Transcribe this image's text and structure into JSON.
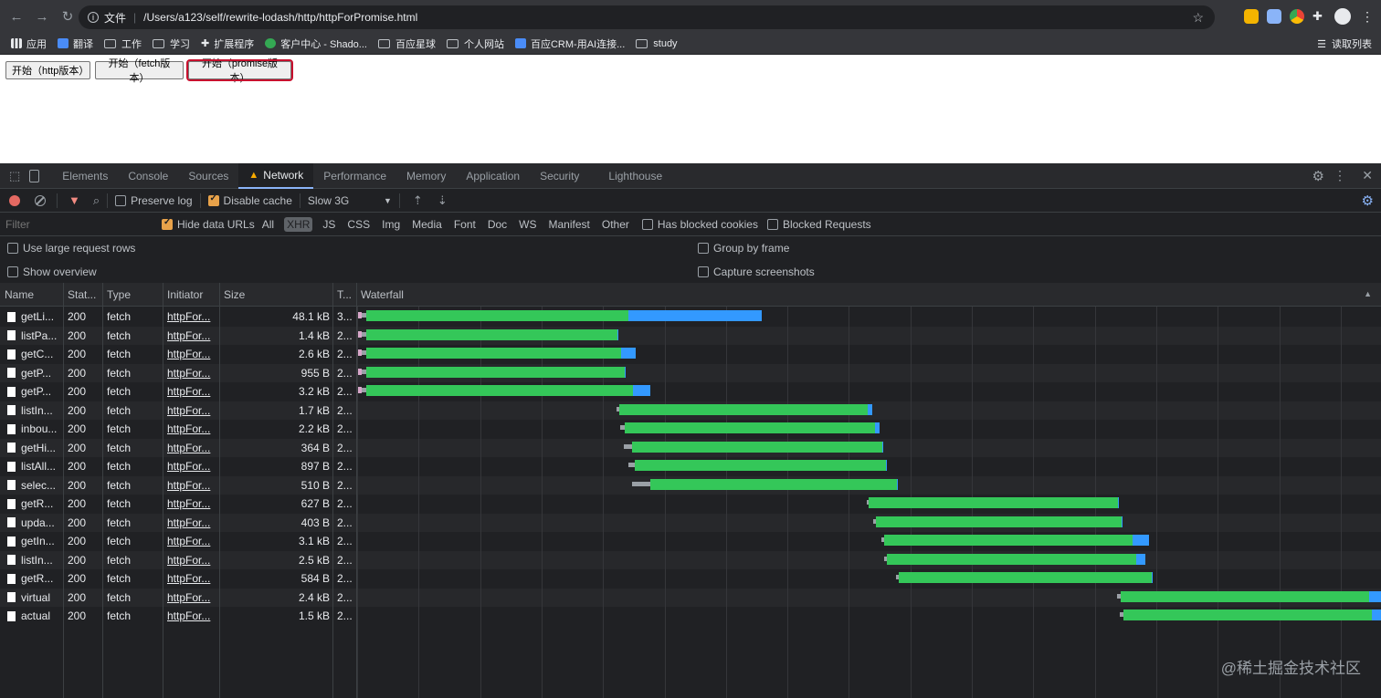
{
  "browser": {
    "url_scheme": "文件",
    "url_path": "/Users/a123/self/rewrite-lodash/http/httpForPromise.html",
    "bookmarks": [
      {
        "label": "应用",
        "color": "#e8eaed",
        "type": "apps"
      },
      {
        "label": "翻译",
        "color": "#4a8cf7",
        "type": "site"
      },
      {
        "label": "工作",
        "type": "folder"
      },
      {
        "label": "学习",
        "type": "folder"
      },
      {
        "label": "扩展程序",
        "color": "#e8eaed",
        "type": "puzzle"
      },
      {
        "label": "客户中心 - Shado...",
        "color": "#34a853",
        "type": "site"
      },
      {
        "label": "百应星球",
        "type": "folder"
      },
      {
        "label": "个人网站",
        "type": "folder"
      },
      {
        "label": "百应CRM-用AI连接...",
        "color": "#4a8cf7",
        "type": "site"
      },
      {
        "label": "study",
        "type": "folder"
      }
    ],
    "reading_list": "读取列表"
  },
  "page": {
    "buttons": [
      "开始（http版本）",
      "开始（fetch版本）",
      "开始（promise版本）"
    ]
  },
  "devtools": {
    "tabs": [
      "Elements",
      "Console",
      "Sources",
      "Network",
      "Performance",
      "Memory",
      "Application",
      "Security",
      "Lighthouse"
    ],
    "active_tab": "Network",
    "toolbar": {
      "preserve_log": "Preserve log",
      "disable_cache": "Disable cache",
      "throttle": "Slow 3G"
    },
    "filter": {
      "placeholder": "Filter",
      "hide_data_urls": "Hide data URLs",
      "types": [
        "All",
        "XHR",
        "JS",
        "CSS",
        "Img",
        "Media",
        "Font",
        "Doc",
        "WS",
        "Manifest",
        "Other"
      ],
      "active_type": "XHR",
      "has_blocked_cookies": "Has blocked cookies",
      "blocked_requests": "Blocked Requests"
    },
    "options": {
      "large_rows": "Use large request rows",
      "show_overview": "Show overview",
      "group_by_frame": "Group by frame",
      "capture_screenshots": "Capture screenshots"
    },
    "columns": {
      "name": "Name",
      "status": "Stat...",
      "type": "Type",
      "initiator": "Initiator",
      "size": "Size",
      "time": "T...",
      "waterfall": "Waterfall"
    },
    "rows": [
      {
        "name": "getLi...",
        "status": "200",
        "type": "fetch",
        "initiator": "httpFor...",
        "size": "48.1 kB",
        "time": "3...",
        "wait": [
          392,
          401
        ],
        "green": [
          401,
          688
        ],
        "blue": [
          688,
          834
        ]
      },
      {
        "name": "listPa...",
        "status": "200",
        "type": "fetch",
        "initiator": "httpFor...",
        "size": "1.4 kB",
        "time": "2...",
        "wait": [
          392,
          401
        ],
        "green": [
          401,
          676
        ],
        "blue": [
          676,
          677
        ]
      },
      {
        "name": "getC...",
        "status": "200",
        "type": "fetch",
        "initiator": "httpFor...",
        "size": "2.6 kB",
        "time": "2...",
        "wait": [
          392,
          401
        ],
        "green": [
          401,
          680
        ],
        "blue": [
          680,
          696
        ]
      },
      {
        "name": "getP...",
        "status": "200",
        "type": "fetch",
        "initiator": "httpFor...",
        "size": "955 B",
        "time": "2...",
        "wait": [
          392,
          401
        ],
        "green": [
          401,
          684
        ],
        "blue": [
          684,
          685
        ]
      },
      {
        "name": "getP...",
        "status": "200",
        "type": "fetch",
        "initiator": "httpFor...",
        "size": "3.2 kB",
        "time": "2...",
        "wait": [
          392,
          401
        ],
        "green": [
          401,
          693
        ],
        "blue": [
          693,
          712
        ]
      },
      {
        "name": "listIn...",
        "status": "200",
        "type": "fetch",
        "initiator": "httpFor...",
        "size": "1.7 kB",
        "time": "2...",
        "wait": [
          675,
          678
        ],
        "green": [
          678,
          950
        ],
        "blue": [
          950,
          955
        ]
      },
      {
        "name": "inbou...",
        "status": "200",
        "type": "fetch",
        "initiator": "httpFor...",
        "size": "2.2 kB",
        "time": "2...",
        "wait": [
          679,
          684
        ],
        "green": [
          684,
          958
        ],
        "blue": [
          958,
          963
        ]
      },
      {
        "name": "getHi...",
        "status": "200",
        "type": "fetch",
        "initiator": "httpFor...",
        "size": "364 B",
        "time": "2...",
        "wait": [
          683,
          692
        ],
        "green": [
          692,
          966
        ],
        "blue": [
          966,
          967
        ]
      },
      {
        "name": "listAll...",
        "status": "200",
        "type": "fetch",
        "initiator": "httpFor...",
        "size": "897 B",
        "time": "2...",
        "wait": [
          688,
          695
        ],
        "green": [
          695,
          970
        ],
        "blue": [
          970,
          971
        ]
      },
      {
        "name": "selec...",
        "status": "200",
        "type": "fetch",
        "initiator": "httpFor...",
        "size": "510 B",
        "time": "2...",
        "wait": [
          692,
          712
        ],
        "green": [
          712,
          982
        ],
        "blue": [
          982,
          983
        ]
      },
      {
        "name": "getR...",
        "status": "200",
        "type": "fetch",
        "initiator": "httpFor...",
        "size": "627 B",
        "time": "2...",
        "wait": [
          949,
          951
        ],
        "green": [
          951,
          1224
        ],
        "blue": [
          1224,
          1225
        ]
      },
      {
        "name": "upda...",
        "status": "200",
        "type": "fetch",
        "initiator": "httpFor...",
        "size": "403 B",
        "time": "2...",
        "wait": [
          956,
          959
        ],
        "green": [
          959,
          1228
        ],
        "blue": [
          1228,
          1229
        ]
      },
      {
        "name": "getIn...",
        "status": "200",
        "type": "fetch",
        "initiator": "httpFor...",
        "size": "3.1 kB",
        "time": "2...",
        "wait": [
          965,
          968
        ],
        "green": [
          968,
          1240
        ],
        "blue": [
          1240,
          1258
        ]
      },
      {
        "name": "listIn...",
        "status": "200",
        "type": "fetch",
        "initiator": "httpFor...",
        "size": "2.5 kB",
        "time": "2...",
        "wait": [
          968,
          971
        ],
        "green": [
          971,
          1244
        ],
        "blue": [
          1244,
          1254
        ]
      },
      {
        "name": "getR...",
        "status": "200",
        "type": "fetch",
        "initiator": "httpFor...",
        "size": "584 B",
        "time": "2...",
        "wait": [
          981,
          984
        ],
        "green": [
          984,
          1261
        ],
        "blue": [
          1261,
          1262
        ]
      },
      {
        "name": "virtual",
        "status": "200",
        "type": "fetch",
        "initiator": "httpFor...",
        "size": "2.4 kB",
        "time": "2...",
        "wait": [
          1223,
          1227
        ],
        "green": [
          1227,
          1499
        ],
        "blue": [
          1499,
          1512
        ]
      },
      {
        "name": "actual",
        "status": "200",
        "type": "fetch",
        "initiator": "httpFor...",
        "size": "1.5 kB",
        "time": "2...",
        "wait": [
          1226,
          1230
        ],
        "green": [
          1230,
          1502
        ],
        "blue": [
          1502,
          1512
        ]
      }
    ]
  },
  "watermark": "@稀土掘金技术社区"
}
